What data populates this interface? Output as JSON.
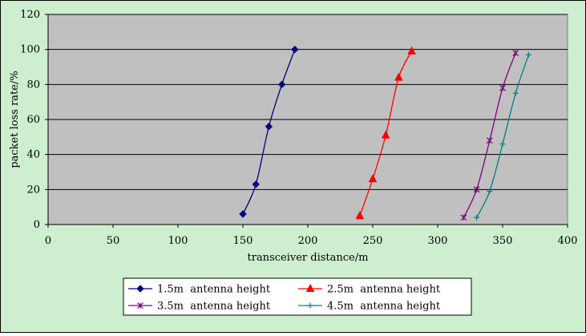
{
  "chart_data": {
    "type": "line",
    "title": "",
    "xlabel": "transceiver distance/m",
    "ylabel": "packet loss rate/%",
    "xlim": [
      0,
      400
    ],
    "ylim": [
      0,
      120
    ],
    "x_ticks": [
      0,
      50,
      100,
      150,
      200,
      250,
      300,
      350,
      400
    ],
    "y_ticks": [
      0,
      20,
      40,
      60,
      80,
      100,
      120
    ],
    "grid": "horizontal",
    "legend_position": "bottom",
    "colors": {
      "figure_background": "#CDEFD0",
      "plot_background": "#C0C0C0"
    },
    "series": [
      {
        "name": "1.5m  antenna height",
        "color": "#000080",
        "marker": "diamond",
        "x": [
          150,
          160,
          170,
          180,
          190
        ],
        "y": [
          6,
          23,
          56,
          80,
          100
        ]
      },
      {
        "name": "2.5m  antenna height",
        "color": "#FF0000",
        "marker": "triangle",
        "x": [
          240,
          250,
          260,
          270,
          280
        ],
        "y": [
          5,
          26,
          51,
          84,
          99
        ]
      },
      {
        "name": "3.5m  antenna height",
        "color": "#800080",
        "marker": "x",
        "x": [
          320,
          330,
          340,
          350,
          360
        ],
        "y": [
          4,
          20,
          48,
          78,
          98
        ]
      },
      {
        "name": "4.5m  antenna height",
        "color": "#008080",
        "marker": "plus",
        "x": [
          330,
          340,
          350,
          360,
          370
        ],
        "y": [
          4,
          19,
          46,
          75,
          97
        ]
      }
    ]
  }
}
